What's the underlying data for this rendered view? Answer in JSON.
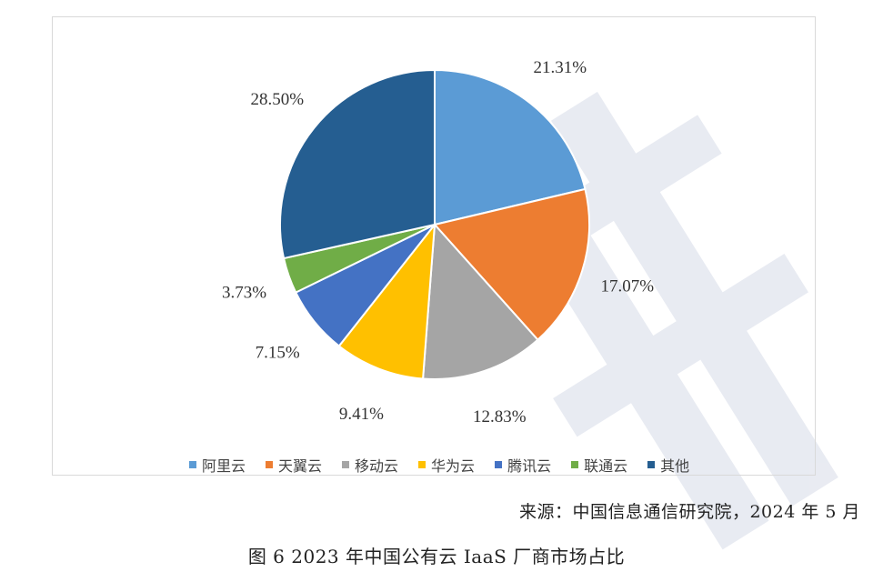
{
  "chart_data": {
    "type": "pie",
    "categories": [
      "阿里云",
      "天翼云",
      "移动云",
      "华为云",
      "腾讯云",
      "联通云",
      "其他"
    ],
    "values": [
      21.31,
      17.07,
      12.83,
      9.41,
      7.15,
      3.73,
      28.5
    ],
    "value_labels": [
      "21.31%",
      "17.07%",
      "12.83%",
      "9.41%",
      "7.15%",
      "3.73%",
      "28.50%"
    ],
    "colors": [
      "#5b9bd5",
      "#ed7d31",
      "#a5a5a5",
      "#ffc000",
      "#4472c4",
      "#70ad47",
      "#255e91"
    ],
    "start_angle_deg": 0,
    "direction": "clockwise",
    "legend_position": "bottom"
  },
  "source_text": "来源：中国信息通信研究院，2024 年 5 月",
  "caption_text": "图 6 2023 年中国公有云 IaaS 厂商市场占比"
}
